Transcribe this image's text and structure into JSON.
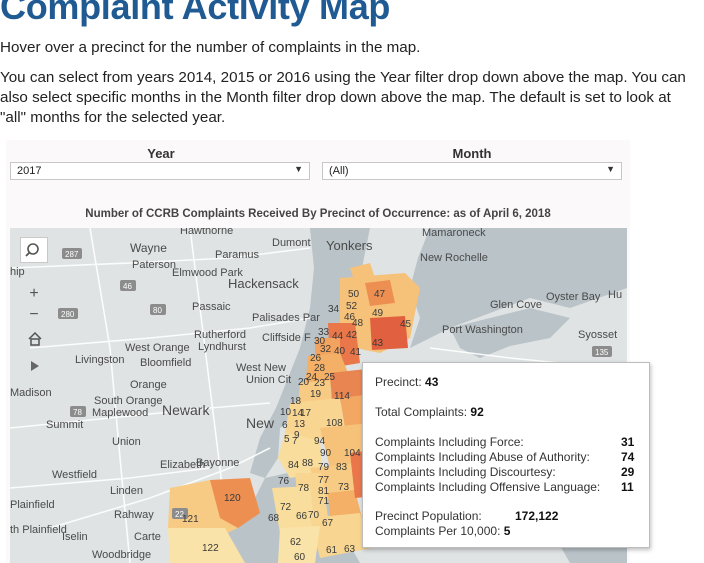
{
  "page": {
    "title": "Complaint Activity Map",
    "intro_1": "Hover over a precinct for the number of complaints in the map.",
    "intro_2": "You can select from years 2014, 2015 or 2016 using the Year filter drop down above the map. You can also select specific months in the Month filter drop down above the map. The default is set to look at \"all\" months for the selected year."
  },
  "filters": {
    "year_label": "Year",
    "year_value": "2017",
    "month_label": "Month",
    "month_value": "(All)"
  },
  "map": {
    "title": "Number of CCRB Complaints Received By Precinct of Occurrence: as of April 6, 2018",
    "controls": {
      "search_icon": "search-icon",
      "zoom_in": "+",
      "zoom_out": "−",
      "home_icon": "home-icon",
      "expand_icon": "play-icon"
    },
    "place_labels": [
      {
        "t": "Hawthorne"
      },
      {
        "t": "Wayne"
      },
      {
        "t": "Paramus"
      },
      {
        "t": "Dumont"
      },
      {
        "t": "Yonkers"
      },
      {
        "t": "Mamaroneck"
      },
      {
        "t": "New Rochelle"
      },
      {
        "t": "Paterson"
      },
      {
        "t": "Elmwood Park"
      },
      {
        "t": "Hackensack"
      },
      {
        "t": "Passaic"
      },
      {
        "t": "Palisades Par"
      },
      {
        "t": "Glen Cove"
      },
      {
        "t": "Oyster Bay"
      },
      {
        "t": "Rutherford"
      },
      {
        "t": "Lyndhurst"
      },
      {
        "t": "Cliffside F"
      },
      {
        "t": "Port Washington"
      },
      {
        "t": "Syosset"
      },
      {
        "t": "West Orange"
      },
      {
        "t": "Livingston"
      },
      {
        "t": "Bloomfield"
      },
      {
        "t": "West New"
      },
      {
        "t": "Union Cit"
      },
      {
        "t": "Orange"
      },
      {
        "t": "Madison"
      },
      {
        "t": "South Orange"
      },
      {
        "t": "Maplewood"
      },
      {
        "t": "Newark"
      },
      {
        "t": "New"
      },
      {
        "t": "Summit"
      },
      {
        "t": "Union"
      },
      {
        "t": "Elizabeth"
      },
      {
        "t": "Bayonne"
      },
      {
        "t": "Westfield"
      },
      {
        "t": "Linden"
      },
      {
        "t": "Plainfield"
      },
      {
        "t": "Rahway"
      },
      {
        "t": "th Plainfield"
      },
      {
        "t": "Iselin"
      },
      {
        "t": "Carte"
      },
      {
        "t": "Woodbridge"
      },
      {
        "t": "hip"
      },
      {
        "t": "Hu"
      }
    ],
    "road_shields": [
      "287",
      "46",
      "280",
      "80",
      "78",
      "22",
      "495",
      "135"
    ],
    "precincts": [
      {
        "id": "50",
        "cnt": 50
      },
      {
        "id": "47",
        "cnt": 47
      },
      {
        "id": "52",
        "cnt": 52
      },
      {
        "id": "49",
        "cnt": 49
      },
      {
        "id": "34",
        "cnt": 34
      },
      {
        "id": "46",
        "cnt": 46
      },
      {
        "id": "45",
        "cnt": 45
      },
      {
        "id": "48",
        "cnt": 48
      },
      {
        "id": "33",
        "cnt": 33
      },
      {
        "id": "44",
        "cnt": 44
      },
      {
        "id": "42",
        "cnt": 42
      },
      {
        "id": "43",
        "cnt": 92
      },
      {
        "id": "30",
        "cnt": 30
      },
      {
        "id": "32",
        "cnt": 32
      },
      {
        "id": "40",
        "cnt": 40
      },
      {
        "id": "41",
        "cnt": 41
      },
      {
        "id": "26",
        "cnt": 26
      },
      {
        "id": "28",
        "cnt": 28
      },
      {
        "id": "24",
        "cnt": 24
      },
      {
        "id": "25",
        "cnt": 25
      },
      {
        "id": "23",
        "cnt": 23
      },
      {
        "id": "20",
        "cnt": 20
      },
      {
        "id": "19",
        "cnt": 19
      },
      {
        "id": "114",
        "cnt": 114
      },
      {
        "id": "18",
        "cnt": 18
      },
      {
        "id": "10",
        "cnt": 10
      },
      {
        "id": "14",
        "cnt": 14
      },
      {
        "id": "17",
        "cnt": 17
      },
      {
        "id": "6",
        "cnt": 6
      },
      {
        "id": "13",
        "cnt": 13
      },
      {
        "id": "9",
        "cnt": 9
      },
      {
        "id": "108",
        "cnt": 108
      },
      {
        "id": "94",
        "cnt": 94
      },
      {
        "id": "5",
        "cnt": 5
      },
      {
        "id": "7",
        "cnt": 7
      },
      {
        "id": "90",
        "cnt": 90
      },
      {
        "id": "104",
        "cnt": 104
      },
      {
        "id": "84",
        "cnt": 84
      },
      {
        "id": "88",
        "cnt": 88
      },
      {
        "id": "79",
        "cnt": 79
      },
      {
        "id": "83",
        "cnt": 83
      },
      {
        "id": "76",
        "cnt": 76
      },
      {
        "id": "78",
        "cnt": 78
      },
      {
        "id": "77",
        "cnt": 77
      },
      {
        "id": "81",
        "cnt": 81
      },
      {
        "id": "73",
        "cnt": 73
      },
      {
        "id": "71",
        "cnt": 71
      },
      {
        "id": "72",
        "cnt": 72
      },
      {
        "id": "67",
        "cnt": 67
      },
      {
        "id": "66",
        "cnt": 66
      },
      {
        "id": "70",
        "cnt": 70
      },
      {
        "id": "68",
        "cnt": 68
      },
      {
        "id": "62",
        "cnt": 62
      },
      {
        "id": "60",
        "cnt": 60
      },
      {
        "id": "61",
        "cnt": 61
      },
      {
        "id": "63",
        "cnt": 63
      },
      {
        "id": "120",
        "cnt": 120
      },
      {
        "id": "121",
        "cnt": 121
      },
      {
        "id": "122",
        "cnt": 122
      },
      {
        "id": "75",
        "cnt": 95
      }
    ]
  },
  "tooltip": {
    "precinct_label": "Precinct:",
    "precinct_value": "43",
    "total_label": "Total Complaints:",
    "total_value": "92",
    "force_label": "Complaints Including Force:",
    "force_value": "31",
    "abuse_label": "Complaints Including Abuse of Authority:",
    "abuse_value": "74",
    "discourtesy_label": "Complaints Including Discourtesy:",
    "discourtesy_value": "29",
    "offensive_label": "Complaints Including Offensive Language:",
    "offensive_value": "11",
    "population_label": "Precinct Population:",
    "population_value": "172,122",
    "per10k_label": "Complaints Per 10,000:",
    "per10k_value": "5"
  },
  "colors": {
    "title": "#1f5a93",
    "land": "#dfe3e3",
    "water": "#b9c3c8",
    "low": "#fbe2a6",
    "mid": "#f3a25a",
    "high": "#e0603f",
    "top": "#c7263e"
  }
}
